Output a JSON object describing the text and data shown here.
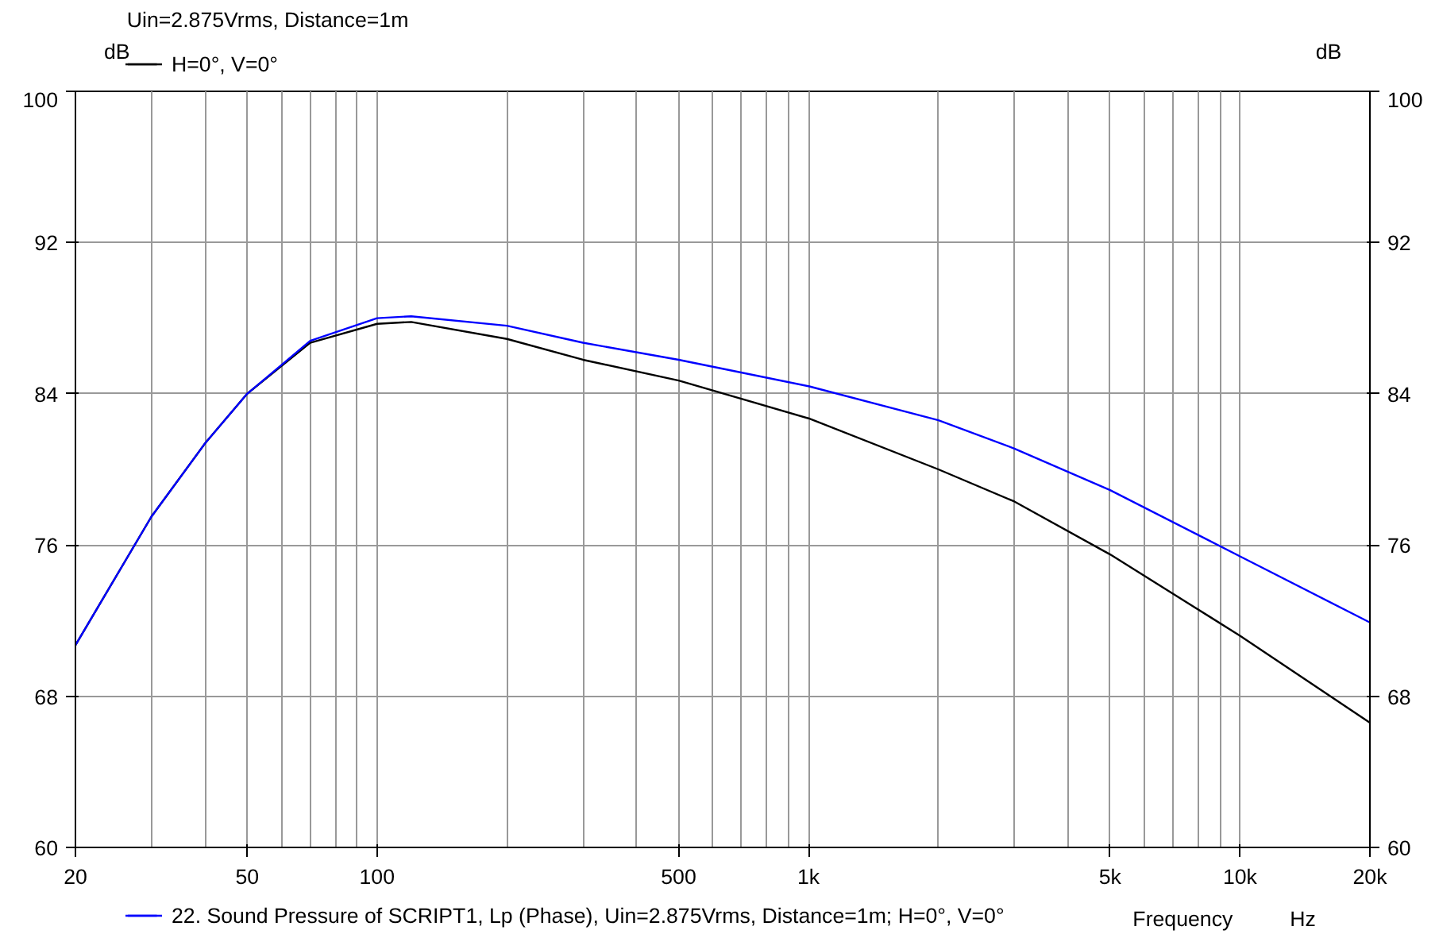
{
  "chart_data": {
    "type": "line",
    "title": "Uin=2.875Vrms, Distance=1m",
    "xlabel": "Frequency",
    "ylabel": "dB",
    "y2label": "dB",
    "annotations": [
      "Hz"
    ],
    "x": [
      20,
      30,
      40,
      50,
      70,
      100,
      120,
      200,
      300,
      500,
      1000,
      2000,
      3000,
      5000,
      10000,
      20000
    ],
    "series": [
      {
        "name": "H=0°, V=0°",
        "color": "#000000",
        "values": [
          70.7,
          77.5,
          81.4,
          84.0,
          86.7,
          87.7,
          87.8,
          86.9,
          85.8,
          84.7,
          82.7,
          80.0,
          78.3,
          75.5,
          71.2,
          66.6
        ]
      },
      {
        "name": "22. Sound Pressure of SCRIPT1, Lp (Phase), Uin=2.875Vrms, Distance=1m; H=0°, V=0°",
        "color": "#0000ff",
        "values": [
          70.7,
          77.5,
          81.4,
          84.0,
          86.8,
          88.0,
          88.1,
          87.6,
          86.7,
          85.8,
          84.4,
          82.6,
          81.1,
          78.9,
          75.4,
          71.9
        ]
      }
    ],
    "log": "x",
    "xlim": [
      20,
      20000
    ],
    "ylim": [
      60,
      100
    ],
    "y2lim": [
      60,
      100
    ],
    "xticks": [
      20,
      50,
      100,
      500,
      {
        "value": 1000,
        "label": "1k"
      },
      {
        "value": 5000,
        "label": "5k"
      },
      {
        "value": 10000,
        "label": "10k"
      },
      {
        "value": 20000,
        "label": "20k"
      }
    ],
    "yticks": [
      60,
      68,
      76,
      84,
      92,
      100
    ],
    "y2ticks": [
      60,
      68,
      76,
      84,
      92,
      100
    ],
    "grid": true,
    "legend": "bottom",
    "marker": "none",
    "line_style": "solid"
  }
}
